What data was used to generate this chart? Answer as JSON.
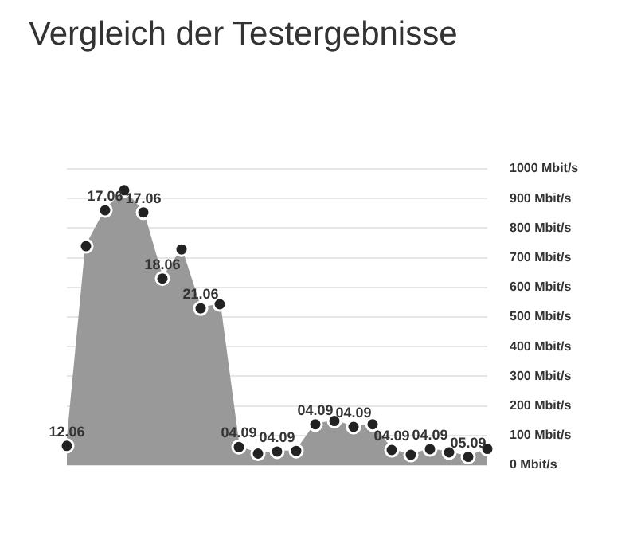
{
  "chart_data": {
    "type": "area",
    "title": "Vergleich der Testergebnisse",
    "categories": [
      "12.06",
      null,
      "17.06",
      null,
      "17.06",
      "18.06",
      null,
      "21.06",
      null,
      "04.09",
      null,
      "04.09",
      null,
      "04.09",
      null,
      "04.09",
      null,
      "04.09",
      null,
      "04.09",
      null,
      "05.09",
      null
    ],
    "series": [
      {
        "color": "#999999",
        "values": [
          65,
          739,
          860,
          928,
          853,
          630,
          728,
          529,
          543,
          61,
          39,
          46,
          48,
          138,
          149,
          129,
          138,
          51,
          35,
          54,
          43,
          28,
          55
        ]
      }
    ],
    "ylim": [
      0,
      1000
    ],
    "yticks": [
      {
        "value": 0,
        "label": "0 Mbit/s"
      },
      {
        "value": 100,
        "label": "100 Mbit/s"
      },
      {
        "value": 200,
        "label": "200 Mbit/s"
      },
      {
        "value": 300,
        "label": "300 Mbit/s"
      },
      {
        "value": 400,
        "label": "400 Mbit/s"
      },
      {
        "value": 500,
        "label": "500 Mbit/s"
      },
      {
        "value": 600,
        "label": "600 Mbit/s"
      },
      {
        "value": 700,
        "label": "700 Mbit/s"
      },
      {
        "value": 800,
        "label": "800 Mbit/s"
      },
      {
        "value": 900,
        "label": "900 Mbit/s"
      },
      {
        "value": 1000,
        "label": "1000 Mbit/s"
      }
    ],
    "grid": "y",
    "legend": false,
    "marker": "circle",
    "tick_labels": "y"
  }
}
